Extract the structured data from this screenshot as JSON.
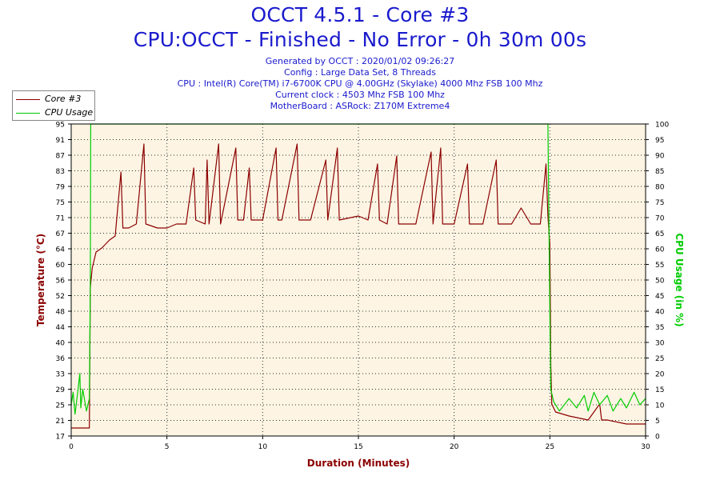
{
  "chart_data": {
    "type": "line",
    "title": "OCCT 4.5.1 - Core #3",
    "subtitle": "CPU:OCCT - Finished - No Error - 0h 30m 00s",
    "info_lines": [
      "Generated by OCCT : 2020/01/02 09:26:27",
      "Config : Large Data Set, 8 Threads",
      "CPU : Intel(R) Core(TM) i7-6700K CPU @ 4.00GHz (Skylake) 4000 Mhz FSB 100 Mhz",
      "Current clock : 4503 Mhz FSB 100 Mhz",
      "MotherBoard : ASRock: Z170M Extreme4"
    ],
    "xlabel": "Duration (Minutes)",
    "ylabel_left": "Temperature (°C)",
    "ylabel_right": "CPU Usage (in %)",
    "xlim": [
      0,
      30
    ],
    "ylim_left": [
      17,
      95
    ],
    "ylim_right": [
      0,
      100
    ],
    "x_ticks": [
      "0",
      "5",
      "10",
      "15",
      "20",
      "25",
      "30"
    ],
    "y_ticks_left": [
      "17",
      "21",
      "25",
      "29",
      "33",
      "36",
      "40",
      "44",
      "48",
      "52",
      "56",
      "60",
      "64",
      "67",
      "71",
      "75",
      "79",
      "83",
      "87",
      "91",
      "95"
    ],
    "y_ticks_right": [
      "0",
      "5",
      "10",
      "15",
      "20",
      "25",
      "30",
      "35",
      "40",
      "45",
      "50",
      "55",
      "60",
      "65",
      "70",
      "75",
      "80",
      "85",
      "90",
      "95",
      "100"
    ],
    "grid": true,
    "legend_position": "top-left",
    "series": [
      {
        "name": "Core #3",
        "axis": "left",
        "color": "#8b0000",
        "points": [
          [
            0,
            19
          ],
          [
            0.5,
            19
          ],
          [
            0.95,
            19
          ],
          [
            1.0,
            54
          ],
          [
            1.1,
            59
          ],
          [
            1.3,
            63
          ],
          [
            1.6,
            64
          ],
          [
            2.0,
            66
          ],
          [
            2.3,
            67
          ],
          [
            2.6,
            83
          ],
          [
            2.7,
            69
          ],
          [
            3.0,
            69
          ],
          [
            3.4,
            70
          ],
          [
            3.8,
            90
          ],
          [
            3.9,
            70
          ],
          [
            4.5,
            69
          ],
          [
            5.0,
            69
          ],
          [
            5.5,
            70
          ],
          [
            6.0,
            70
          ],
          [
            6.4,
            84
          ],
          [
            6.5,
            71
          ],
          [
            7.0,
            70
          ],
          [
            7.1,
            86
          ],
          [
            7.2,
            70
          ],
          [
            7.7,
            90
          ],
          [
            7.8,
            70
          ],
          [
            8.6,
            89
          ],
          [
            8.7,
            71
          ],
          [
            9.0,
            71
          ],
          [
            9.3,
            84
          ],
          [
            9.4,
            71
          ],
          [
            10.0,
            71
          ],
          [
            10.7,
            89
          ],
          [
            10.8,
            71
          ],
          [
            11.0,
            71
          ],
          [
            11.8,
            90
          ],
          [
            11.9,
            71
          ],
          [
            12.5,
            71
          ],
          [
            13.3,
            86
          ],
          [
            13.4,
            71
          ],
          [
            13.9,
            89
          ],
          [
            14.0,
            71
          ],
          [
            15.0,
            72
          ],
          [
            15.5,
            71
          ],
          [
            16.0,
            85
          ],
          [
            16.1,
            71
          ],
          [
            16.5,
            70
          ],
          [
            17.0,
            87
          ],
          [
            17.1,
            70
          ],
          [
            18.0,
            70
          ],
          [
            18.8,
            88
          ],
          [
            18.9,
            70
          ],
          [
            19.3,
            89
          ],
          [
            19.4,
            70
          ],
          [
            20.0,
            70
          ],
          [
            20.7,
            85
          ],
          [
            20.8,
            70
          ],
          [
            21.5,
            70
          ],
          [
            22.2,
            86
          ],
          [
            22.3,
            70
          ],
          [
            23.0,
            70
          ],
          [
            23.5,
            74
          ],
          [
            24.0,
            70
          ],
          [
            24.5,
            70
          ],
          [
            24.8,
            85
          ],
          [
            24.9,
            72
          ],
          [
            25.0,
            65
          ],
          [
            25.05,
            35
          ],
          [
            25.1,
            25
          ],
          [
            25.3,
            23
          ],
          [
            26.0,
            22
          ],
          [
            27.0,
            21
          ],
          [
            27.6,
            25
          ],
          [
            27.7,
            21
          ],
          [
            28.0,
            21
          ],
          [
            29.0,
            20
          ],
          [
            29.5,
            20
          ],
          [
            30.0,
            20
          ]
        ]
      },
      {
        "name": "CPU Usage",
        "axis": "right",
        "color": "#00cc00",
        "points": [
          [
            0,
            10
          ],
          [
            0.1,
            14
          ],
          [
            0.2,
            7
          ],
          [
            0.3,
            12
          ],
          [
            0.45,
            20
          ],
          [
            0.5,
            9
          ],
          [
            0.6,
            15
          ],
          [
            0.8,
            8
          ],
          [
            0.95,
            12
          ],
          [
            1.0,
            50
          ],
          [
            1.02,
            100
          ],
          [
            10.0,
            100
          ],
          [
            20.0,
            100
          ],
          [
            24.9,
            100
          ],
          [
            25.0,
            40
          ],
          [
            25.05,
            15
          ],
          [
            25.2,
            11
          ],
          [
            25.5,
            8
          ],
          [
            26.0,
            12
          ],
          [
            26.4,
            9
          ],
          [
            26.8,
            13
          ],
          [
            27.0,
            8
          ],
          [
            27.3,
            14
          ],
          [
            27.6,
            10
          ],
          [
            28.0,
            13
          ],
          [
            28.3,
            8
          ],
          [
            28.7,
            12
          ],
          [
            29.0,
            9
          ],
          [
            29.4,
            14
          ],
          [
            29.7,
            10
          ],
          [
            30.0,
            12
          ]
        ]
      }
    ]
  }
}
